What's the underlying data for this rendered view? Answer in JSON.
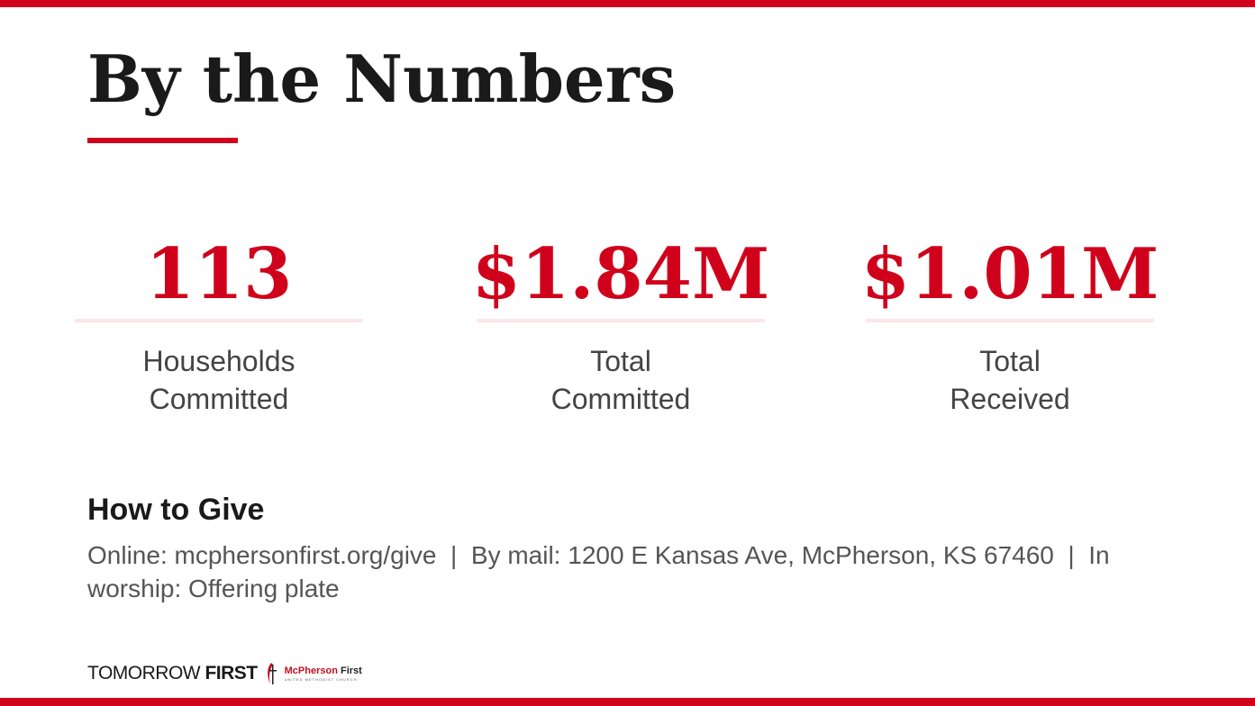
{
  "title": "By the Numbers",
  "stats": [
    {
      "value": "113",
      "label": "Households Committed"
    },
    {
      "value": "$1.84M",
      "label": "Total Committed"
    },
    {
      "value": "$1.01M",
      "label": "Total Received"
    }
  ],
  "how_to_give": {
    "heading": "How to Give",
    "text": "Online: mcphersonfirst.org/give  |  By mail: 1200 E Kansas Ave, McPherson, KS 67460  |  In worship: Offering plate"
  },
  "footer": {
    "brand_light": "TOMORROW",
    "brand_bold": "FIRST",
    "org_name": "McPherson",
    "org_name_bold": "First",
    "org_sub": "UNITED METHODIST CHURCH"
  }
}
